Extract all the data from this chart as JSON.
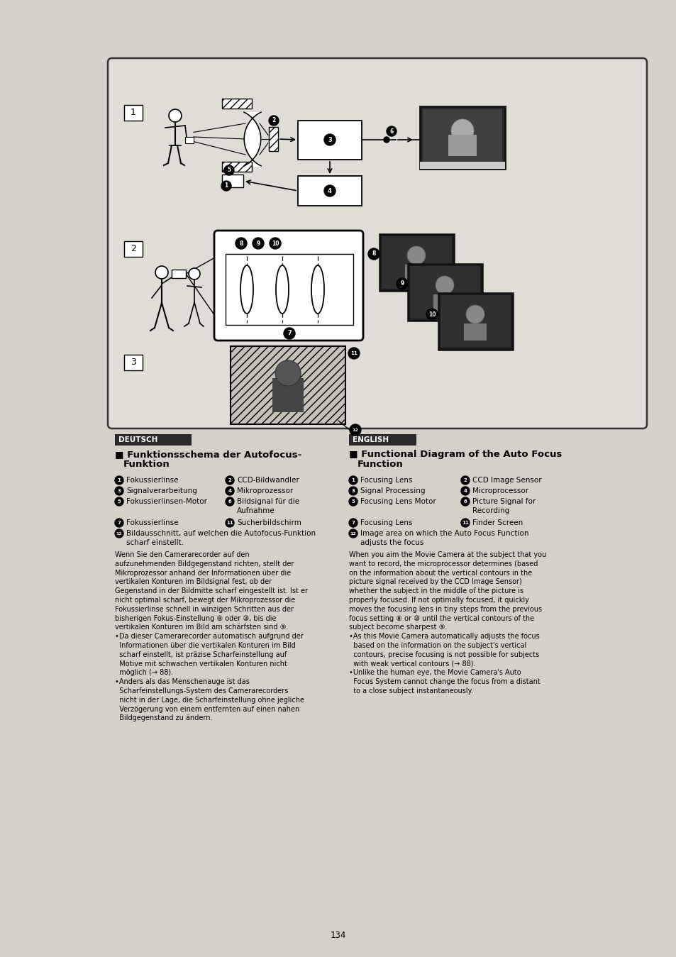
{
  "page_bg": "#d5d1c9",
  "page_number": "134",
  "deutsch_header": "DEUTSCH",
  "english_header": "ENGLISH",
  "deutsch_body": "Wenn Sie den Camerarecorder auf den\naufzunehmenden Bildgegenstand richten, stellt der\nMikroprozessor anhand der Informationen über die\nvertikalen Konturen im Bildsignal fest, ob der\nGegenstand in der Bildmitte scharf eingestellt ist. Ist er\nnicht optimal scharf, bewegt der Mikroprozessor die\nFokussierlinse schnell in winzigen Schritten aus der\nbisherigen Fokus-Einstellung ⑧ oder ⑩, bis die\nvertikalen Konturen im Bild am schärfsten sind ⑨.\n•Da dieser Camerarecorder automatisch aufgrund der\n  Informationen über die vertikalen Konturen im Bild\n  scharf einstellt, ist präzise Scharfeinstellung auf\n  Motive mit schwachen vertikalen Konturen nicht\n  möglich (→ 88).\n•Anders als das Menschenauge ist das\n  Scharfeinstellungs-System des Camerarecorders\n  nicht in der Lage, die Scharfeinstellung ohne jegliche\n  Verzögerung von einem entfernten auf einen nahen\n  Bildgegenstand zu ändern.",
  "english_body": "When you aim the Movie Camera at the subject that you\nwant to record, the microprocessor determines (based\non the information about the vertical contours in the\npicture signal received by the CCD Image Sensor)\nwhether the subject in the middle of the picture is\nproperly focused. If not optimally focused, it quickly\nmoves the focusing lens in tiny steps from the previous\nfocus setting ⑧ or ⑩ until the vertical contours of the\nsubject become sharpest ⑨.\n•As this Movie Camera automatically adjusts the focus\n  based on the information on the subject's vertical\n  contours, precise focusing is not possible for subjects\n  with weak vertical contours (→ 88).\n•Unlike the human eye, the Movie Camera's Auto\n  Focus System cannot change the focus from a distant\n  to a close subject instantaneously."
}
